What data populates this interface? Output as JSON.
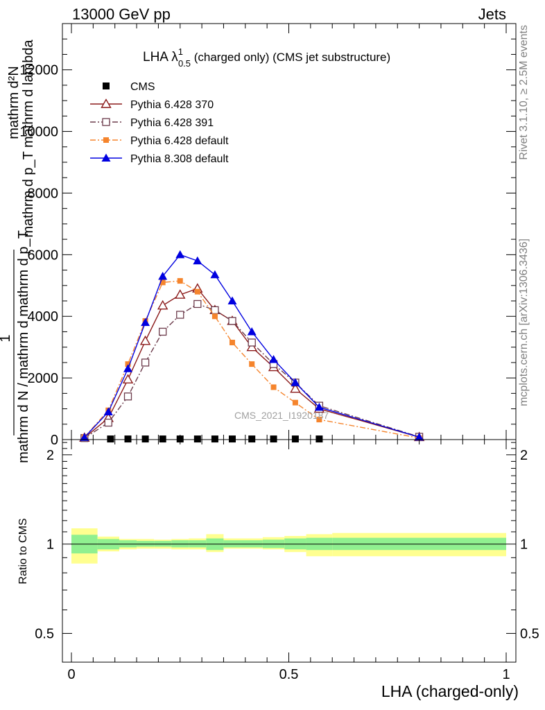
{
  "header": {
    "left": "13000 GeV pp",
    "right": "Jets"
  },
  "side_labels": {
    "rivet": "Rivet 3.1.10, ≥ 2.5M events",
    "mcplots": "mcplots.cern.ch [arXiv:1306.3436]"
  },
  "watermark": "CMS_2021_I1920187",
  "chart_data": [
    {
      "type": "line",
      "title_main": "LHA λ",
      "title_sup": "1",
      "title_sub": "0.5",
      "title_rest": " (charged only) (CMS jet substructure)",
      "ylabel_numerator": "mathrm d²N",
      "ylabel_denominator": "mathrm d p_T mathrm d lambda",
      "ylabel_prefactor_num": "1",
      "ylabel_prefactor_den": "mathrm d N / mathrm d mathrm d p_T",
      "ylabel_overlay": "mathrm d N / mathrm d p_T mathrm d lambda",
      "xlim": [
        0,
        1
      ],
      "ylim": [
        0,
        13500
      ],
      "yticks": [
        0,
        2000,
        4000,
        6000,
        8000,
        10000,
        12000
      ],
      "ytick_labels": [
        "0",
        "2000",
        "4000",
        "6000",
        "8000",
        "10000",
        "12000"
      ],
      "legend_position": "top-left",
      "series": [
        {
          "name": "CMS",
          "color": "#000000",
          "marker": "square-filled",
          "line": "none",
          "x": [
            0.09,
            0.13,
            0.17,
            0.21,
            0.25,
            0.29,
            0.33,
            0.37,
            0.415,
            0.465,
            0.515,
            0.57
          ],
          "y": [
            20,
            20,
            20,
            20,
            20,
            20,
            20,
            20,
            20,
            20,
            20,
            20
          ]
        },
        {
          "name": "Pythia 6.428 370",
          "color": "#8b1a1a",
          "marker": "triangle-open",
          "line": "solid",
          "x": [
            0.03,
            0.085,
            0.13,
            0.17,
            0.21,
            0.25,
            0.29,
            0.33,
            0.37,
            0.415,
            0.465,
            0.515,
            0.57,
            0.8
          ],
          "y": [
            60,
            700,
            1950,
            3200,
            4350,
            4700,
            4900,
            4200,
            3850,
            3000,
            2350,
            1650,
            1000,
            80
          ]
        },
        {
          "name": "Pythia 6.428 391",
          "color": "#6b3a4a",
          "marker": "square-open",
          "line": "dashdot",
          "x": [
            0.03,
            0.085,
            0.13,
            0.17,
            0.21,
            0.25,
            0.29,
            0.33,
            0.37,
            0.415,
            0.465,
            0.515,
            0.57,
            0.8
          ],
          "y": [
            50,
            550,
            1400,
            2500,
            3500,
            4050,
            4400,
            4200,
            3850,
            3150,
            2450,
            1850,
            1100,
            90
          ]
        },
        {
          "name": "Pythia 6.428 default",
          "color": "#f5842c",
          "marker": "square-filled-small",
          "line": "dashdot",
          "x": [
            0.03,
            0.085,
            0.13,
            0.17,
            0.21,
            0.25,
            0.29,
            0.33,
            0.37,
            0.415,
            0.465,
            0.515,
            0.57,
            0.8
          ],
          "y": [
            80,
            950,
            2450,
            3850,
            5100,
            5150,
            4800,
            4000,
            3150,
            2450,
            1700,
            1200,
            650,
            50
          ]
        },
        {
          "name": "Pythia 8.308 default",
          "color": "#0000e0",
          "marker": "triangle-filled",
          "line": "solid",
          "x": [
            0.03,
            0.085,
            0.13,
            0.17,
            0.21,
            0.25,
            0.29,
            0.33,
            0.37,
            0.415,
            0.465,
            0.515,
            0.57,
            0.8
          ],
          "y": [
            70,
            900,
            2300,
            3800,
            5300,
            6000,
            5800,
            5350,
            4500,
            3500,
            2600,
            1850,
            1050,
            80
          ]
        }
      ]
    },
    {
      "type": "area",
      "ylabel": "Ratio to CMS",
      "xlabel": "LHA (charged-only)",
      "xlim": [
        0,
        1
      ],
      "ylim": [
        0.4,
        2.25
      ],
      "yscale": "log",
      "yticks": [
        0.5,
        1,
        2
      ],
      "ytick_labels": [
        "0.5",
        "1",
        "2"
      ],
      "xticks": [
        0,
        0.5,
        1
      ],
      "xtick_labels": [
        "0",
        "0.5",
        "1"
      ],
      "reference_line": 1,
      "bands": {
        "bin_edges": [
          0,
          0.06,
          0.11,
          0.15,
          0.19,
          0.23,
          0.27,
          0.31,
          0.35,
          0.39,
          0.44,
          0.49,
          0.54,
          0.6,
          1.0
        ],
        "inner_low": [
          0.93,
          0.96,
          0.975,
          0.98,
          0.98,
          0.975,
          0.975,
          0.955,
          0.975,
          0.975,
          0.97,
          0.96,
          0.955,
          0.955
        ],
        "inner_high": [
          1.075,
          1.04,
          1.03,
          1.025,
          1.025,
          1.03,
          1.03,
          1.045,
          1.03,
          1.03,
          1.035,
          1.045,
          1.05,
          1.05
        ],
        "outer_low": [
          0.86,
          0.945,
          0.96,
          0.965,
          0.965,
          0.96,
          0.96,
          0.94,
          0.965,
          0.965,
          0.96,
          0.94,
          0.91,
          0.91
        ],
        "outer_high": [
          1.13,
          1.06,
          1.04,
          1.04,
          1.035,
          1.04,
          1.045,
          1.08,
          1.045,
          1.045,
          1.055,
          1.065,
          1.08,
          1.09
        ],
        "inner_color": "#90f090",
        "outer_color": "#ffff90"
      }
    }
  ]
}
